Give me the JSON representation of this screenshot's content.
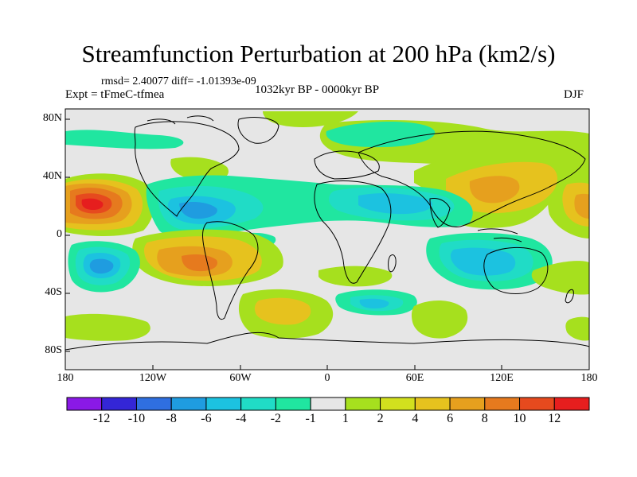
{
  "title": "Streamfunction Perturbation at 200 hPa (km2/s)",
  "stats": "rmsd= 2.40077 diff= -1.01393e-09",
  "experiment": "Expt = tFmeC-tfmea",
  "period": "1032kyr BP - 0000kyr BP",
  "season": "DJF",
  "map_data": {
    "type": "contour-map",
    "projection": "equirectangular",
    "lon_range": [
      -180,
      180
    ],
    "lat_range": [
      -90,
      90
    ],
    "y_ticks": [
      "80N",
      "40N",
      "0",
      "40S",
      "80S"
    ],
    "x_ticks": [
      "180",
      "120W",
      "60W",
      "0",
      "60E",
      "120E",
      "180"
    ]
  },
  "colorbar": {
    "labels": [
      "-12",
      "-10",
      "-8",
      "-6",
      "-4",
      "-2",
      "-1",
      "1",
      "2",
      "4",
      "6",
      "8",
      "10",
      "12"
    ],
    "colors": [
      "#8a19e6",
      "#3426d6",
      "#2f6fe0",
      "#1f9ce0",
      "#1cc2e0",
      "#20dcc6",
      "#20e6a0",
      "#e6e6e6",
      "#a6e01e",
      "#d2e01e",
      "#e6c21e",
      "#e6a01e",
      "#e67a1e",
      "#e64a1e",
      "#e61e1e"
    ]
  },
  "palette": {
    "p12": "#e61e1e",
    "p10": "#e64a1e",
    "p8": "#e67a1e",
    "p6": "#e6a01e",
    "p4": "#e6c21e",
    "p2": "#d2e01e",
    "p1": "#a6e01e",
    "zero": "#e6e6e6",
    "n1": "#20e6a0",
    "n2": "#20dcc6",
    "n4": "#1cc2e0",
    "n6": "#1f9ce0"
  }
}
